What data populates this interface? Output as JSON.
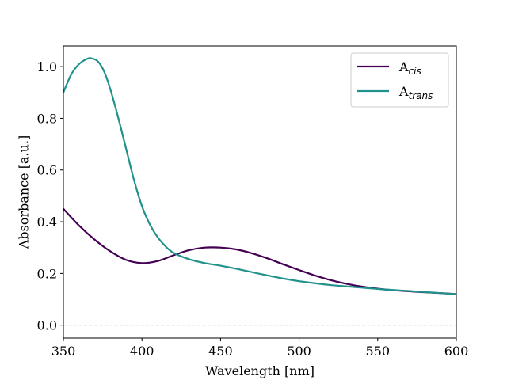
{
  "chart_data": {
    "type": "line",
    "title": "",
    "xlabel": "Wavelength [nm]",
    "ylabel": "Absorbance [a.u.]",
    "xlim": [
      350,
      600
    ],
    "ylim": [
      -0.05,
      1.08
    ],
    "xticks": [
      350,
      400,
      450,
      500,
      550,
      600
    ],
    "yticks": [
      0.0,
      0.2,
      0.4,
      0.6,
      0.8,
      1.0
    ],
    "ytick_labels": [
      "0.0",
      "0.2",
      "0.4",
      "0.6",
      "0.8",
      "1.0"
    ],
    "grid": false,
    "legend_position": "top-right",
    "baseline": {
      "y": 0.0,
      "style": "dashed",
      "color": "#808080"
    },
    "series": [
      {
        "name": "A",
        "subscript": "cis",
        "color": "#440154",
        "x": [
          350,
          360,
          370,
          380,
          390,
          400,
          410,
          420,
          430,
          440,
          450,
          460,
          470,
          480,
          490,
          500,
          510,
          520,
          530,
          540,
          550,
          560,
          570,
          580,
          590,
          600
        ],
        "y": [
          0.45,
          0.385,
          0.33,
          0.285,
          0.252,
          0.24,
          0.248,
          0.27,
          0.29,
          0.3,
          0.3,
          0.293,
          0.278,
          0.258,
          0.235,
          0.213,
          0.192,
          0.174,
          0.16,
          0.149,
          0.141,
          0.135,
          0.131,
          0.127,
          0.124,
          0.12
        ]
      },
      {
        "name": "A",
        "subscript": "trans",
        "color": "#21918c",
        "x": [
          350,
          355,
          360,
          365,
          368,
          372,
          376,
          380,
          385,
          390,
          395,
          400,
          405,
          410,
          415,
          420,
          430,
          440,
          450,
          460,
          470,
          480,
          490,
          500,
          510,
          520,
          530,
          540,
          550,
          560,
          570,
          580,
          590,
          600
        ],
        "y": [
          0.9,
          0.97,
          1.01,
          1.03,
          1.032,
          1.02,
          0.98,
          0.91,
          0.8,
          0.68,
          0.56,
          0.46,
          0.39,
          0.34,
          0.305,
          0.28,
          0.255,
          0.24,
          0.23,
          0.218,
          0.205,
          0.192,
          0.18,
          0.17,
          0.162,
          0.155,
          0.15,
          0.145,
          0.14,
          0.136,
          0.132,
          0.128,
          0.124,
          0.12
        ]
      }
    ]
  }
}
